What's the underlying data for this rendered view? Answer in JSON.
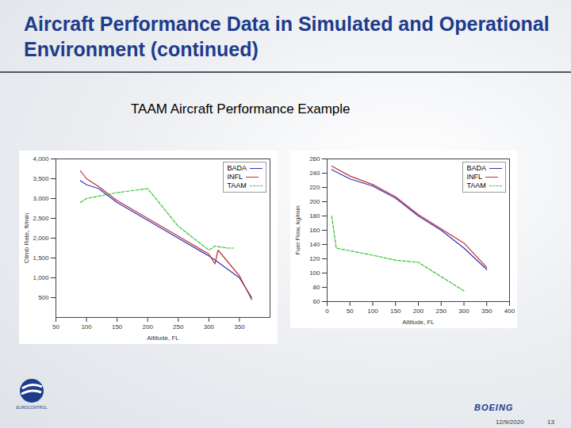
{
  "slide": {
    "title": "Aircraft Performance Data in Simulated and Operational Environment (continued)",
    "subtitle": "TAAM Aircraft Performance Example",
    "logo_left": "EUROCONTROL",
    "logo_right": "BOEING",
    "date": "12/9/2020",
    "page": "13"
  },
  "chart_data": [
    {
      "type": "line",
      "xlabel": "Altitude, FL",
      "ylabel": "Climb Rate, ft/min",
      "xlim": [
        50,
        400
      ],
      "xticks": [
        50,
        100,
        150,
        200,
        250,
        300,
        350
      ],
      "ylim": [
        0,
        4000
      ],
      "yticks": [
        500,
        1000,
        1500,
        2000,
        2500,
        3000,
        3500,
        4000
      ],
      "grid": false,
      "legend": "top-right",
      "series": [
        {
          "name": "BADA",
          "color": "#3030c0",
          "line_style": "solid",
          "x": [
            90,
            100,
            120,
            150,
            200,
            250,
            300,
            310,
            350,
            370
          ],
          "values": [
            3450,
            3350,
            3250,
            2900,
            2450,
            2000,
            1550,
            1450,
            1000,
            500
          ]
        },
        {
          "name": "INFL",
          "color": "#c03030",
          "line_style": "solid",
          "x": [
            90,
            100,
            120,
            150,
            200,
            250,
            300,
            310,
            315,
            350,
            370
          ],
          "values": [
            3700,
            3500,
            3300,
            2950,
            2500,
            2050,
            1600,
            1350,
            1700,
            1050,
            450
          ]
        },
        {
          "name": "TAAM",
          "color": "#30c030",
          "line_style": "dashed",
          "x": [
            90,
            100,
            150,
            200,
            250,
            300,
            310,
            330,
            340
          ],
          "values": [
            2900,
            3000,
            3150,
            3250,
            2300,
            1700,
            1800,
            1750,
            1750
          ]
        }
      ]
    },
    {
      "type": "line",
      "xlabel": "Altitude, FL",
      "ylabel": "Fuel Flow, kg/min",
      "xlim": [
        0,
        400
      ],
      "xticks": [
        0,
        50,
        100,
        150,
        200,
        250,
        300,
        350,
        400
      ],
      "ylim": [
        60,
        260
      ],
      "yticks": [
        60,
        80,
        100,
        120,
        140,
        160,
        180,
        200,
        220,
        240,
        260
      ],
      "grid": false,
      "legend": "top-right",
      "series": [
        {
          "name": "BADA",
          "color": "#3030c0",
          "line_style": "solid",
          "x": [
            10,
            50,
            100,
            150,
            200,
            250,
            300,
            350
          ],
          "values": [
            245,
            232,
            222,
            205,
            180,
            160,
            135,
            105
          ]
        },
        {
          "name": "INFL",
          "color": "#c03030",
          "line_style": "solid",
          "x": [
            10,
            50,
            100,
            150,
            200,
            250,
            300,
            350
          ],
          "values": [
            250,
            236,
            224,
            207,
            182,
            162,
            142,
            108
          ]
        },
        {
          "name": "TAAM",
          "color": "#30c030",
          "line_style": "dashed",
          "x": [
            10,
            20,
            100,
            150,
            200,
            250,
            300
          ],
          "values": [
            180,
            135,
            125,
            118,
            115,
            95,
            75
          ]
        }
      ]
    }
  ]
}
